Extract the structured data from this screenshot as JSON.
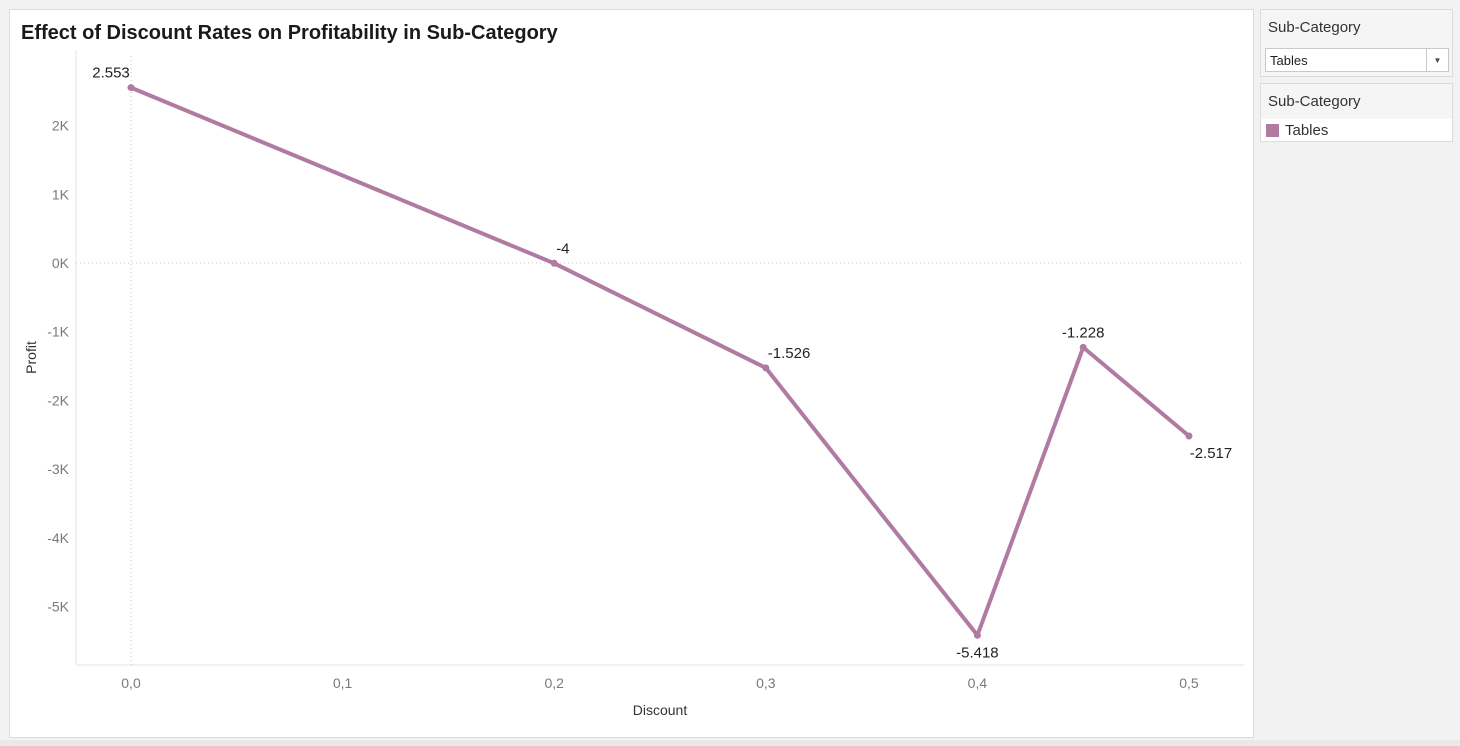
{
  "chart_data": {
    "type": "line",
    "title": "Effect of Discount Rates on Profitability in Sub-Category",
    "xlabel": "Discount",
    "ylabel": "Profit",
    "x_ticks": [
      "0,0",
      "0,1",
      "0,2",
      "0,3",
      "0,4",
      "0,5"
    ],
    "y_ticks": [
      "2K",
      "1K",
      "0K",
      "-1K",
      "-2K",
      "-3K",
      "-4K",
      "-5K"
    ],
    "xlim": [
      -0.026,
      0.526
    ],
    "ylim": [
      -5850,
      3100
    ],
    "grid": false,
    "series": [
      {
        "name": "Tables",
        "color": "#b07aa1",
        "points": [
          {
            "x": 0.0,
            "y": 2553,
            "label": "2.553"
          },
          {
            "x": 0.2,
            "y": -4,
            "label": "-4"
          },
          {
            "x": 0.3,
            "y": -1526,
            "label": "-1.526"
          },
          {
            "x": 0.4,
            "y": -5418,
            "label": "-5.418"
          },
          {
            "x": 0.45,
            "y": -1228,
            "label": "-1.228"
          },
          {
            "x": 0.5,
            "y": -2517,
            "label": "-2.517"
          }
        ]
      }
    ]
  },
  "filter": {
    "title": "Sub-Category",
    "selected": "Tables",
    "icon": "chevron-down-icon"
  },
  "legend": {
    "title": "Sub-Category",
    "items": [
      {
        "label": "Tables",
        "color": "#b07aa1"
      }
    ]
  }
}
